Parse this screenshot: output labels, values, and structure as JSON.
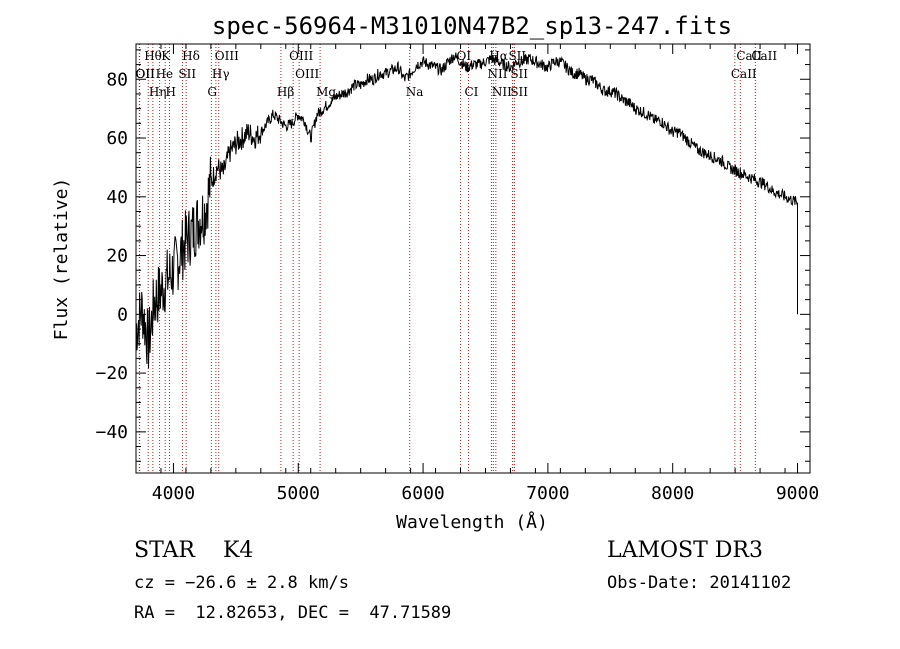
{
  "chart_data": {
    "type": "line",
    "title": "spec-56964-M31010N47B2_sp13-247.fits",
    "xlabel": "Wavelength (Å)",
    "ylabel": "Flux (relative)",
    "xlim": [
      3700,
      9100
    ],
    "ylim": [
      -54,
      92
    ],
    "xticks": [
      4000,
      5000,
      6000,
      7000,
      8000,
      9000
    ],
    "yticks": [
      -40,
      -20,
      0,
      20,
      40,
      60,
      80
    ],
    "xtick_labels": [
      "4000",
      "5000",
      "6000",
      "7000",
      "8000",
      "9000"
    ],
    "ytick_labels": [
      "−40",
      "−20",
      "0",
      "20",
      "40",
      "60",
      "80"
    ],
    "grid": false,
    "series": [
      {
        "x": [
          3700,
          3750,
          3800,
          3850,
          3900,
          3950,
          4000,
          4050,
          4100,
          4150,
          4200,
          4250,
          4300,
          4350,
          4400,
          4450,
          4500,
          4550,
          4600,
          4650,
          4700,
          4750,
          4800,
          4850,
          4900,
          4950,
          5000,
          5050,
          5100,
          5150,
          5200,
          5250,
          5300,
          5350,
          5400,
          5450,
          5500,
          5550,
          5600,
          5650,
          5700,
          5750,
          5800,
          5850,
          5900,
          5950,
          6000,
          6050,
          6100,
          6150,
          6200,
          6250,
          6300,
          6350,
          6400,
          6450,
          6500,
          6550,
          6600,
          6650,
          6700,
          6750,
          6800,
          6850,
          6900,
          6950,
          7000,
          7050,
          7100,
          7150,
          7200,
          7250,
          7300,
          7350,
          7400,
          7450,
          7500,
          7550,
          7600,
          7650,
          7700,
          7750,
          7800,
          7850,
          7900,
          7950,
          8000,
          8050,
          8100,
          8150,
          8200,
          8250,
          8300,
          8350,
          8400,
          8450,
          8500,
          8550,
          8600,
          8650,
          8700,
          8750,
          8800,
          8850,
          8900,
          8950,
          9000
        ],
        "y": [
          -5,
          2,
          -10,
          5,
          8,
          12,
          15,
          20,
          25,
          28,
          32,
          35,
          45,
          50,
          48,
          55,
          58,
          60,
          62,
          60,
          62,
          65,
          68,
          66,
          64,
          65,
          68,
          66,
          60,
          68,
          70,
          72,
          74,
          75,
          76,
          78,
          78,
          80,
          80,
          82,
          82,
          83,
          84,
          80,
          82,
          85,
          86,
          85,
          84,
          83,
          86,
          88,
          86,
          84,
          85,
          85,
          86,
          87,
          86,
          85,
          84,
          86,
          86,
          87,
          86,
          85,
          84,
          86,
          86,
          84,
          82,
          82,
          80,
          80,
          78,
          76,
          76,
          75,
          73,
          72,
          70,
          69,
          68,
          66,
          66,
          64,
          62,
          62,
          60,
          58,
          56,
          55,
          54,
          53,
          52,
          50,
          49,
          48,
          47,
          46,
          45,
          44,
          42,
          41,
          40,
          39,
          38
        ]
      }
    ],
    "spectral_lines": [
      {
        "label": "Hθ",
        "x": 3798
      },
      {
        "label": "K",
        "x": 3934
      },
      {
        "label": "Hδ",
        "x": 4102
      },
      {
        "label": "OIII",
        "x": 4363
      },
      {
        "label": "OIII",
        "x": 4959
      },
      {
        "label": "OI",
        "x": 6300
      },
      {
        "label": "Hα",
        "x": 6563
      },
      {
        "label": "SII",
        "x": 6716
      },
      {
        "label": "CaII",
        "x": 8542
      },
      {
        "label": "OII",
        "x": 3727
      },
      {
        "label": "He",
        "x": 3889
      },
      {
        "label": "SII",
        "x": 4072
      },
      {
        "label": "Hγ",
        "x": 4340
      },
      {
        "label": "OIII",
        "x": 5007
      },
      {
        "label": "NII",
        "x": 6548
      },
      {
        "label": "SII",
        "x": 6731
      },
      {
        "label": "CaII",
        "x": 8498
      },
      {
        "label": "OII",
        "x": 3729
      },
      {
        "label": "Hη",
        "x": 3835
      },
      {
        "label": "H",
        "x": 3968
      },
      {
        "label": "G",
        "x": 4304
      },
      {
        "label": "Hβ",
        "x": 4861
      },
      {
        "label": "Mg",
        "x": 5175
      },
      {
        "label": "Na",
        "x": 5893
      },
      {
        "label": "CI",
        "x": 6364
      },
      {
        "label": "NII",
        "x": 6583
      },
      {
        "label": "SII",
        "x": 6731
      },
      {
        "label": "CaII",
        "x": 8662
      }
    ]
  },
  "info": {
    "class_line": "STAR    K4",
    "cz_line": "cz = −26.6 ± 2.8 km/s",
    "radec_line": "RA =  12.82653, DEC =  47.71589",
    "survey_line": "LAMOST DR3",
    "obsdate_line": "Obs-Date: 20141102"
  }
}
